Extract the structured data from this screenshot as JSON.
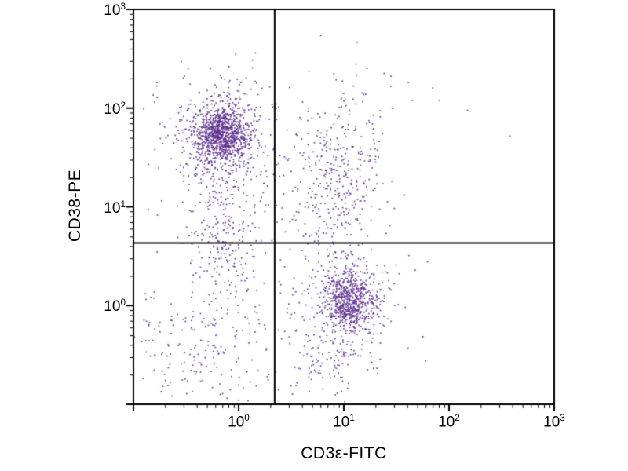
{
  "chart_data": {
    "type": "scatter",
    "subtype": "flow-cytometry-dot-plot",
    "title": "",
    "xlabel": "CD3ε-FITC",
    "ylabel": "CD38-PE",
    "xscale": "log",
    "yscale": "log",
    "xlim": [
      0.1,
      1000
    ],
    "ylim": [
      0.1,
      1000
    ],
    "x_tick_exponents": [
      0,
      1,
      2,
      3
    ],
    "y_tick_exponents": [
      0,
      1,
      2,
      3
    ],
    "grid": false,
    "legend": false,
    "quadrant_gate": {
      "x": 2.2,
      "y": 4.3
    },
    "dot_color": "#5a2b8c",
    "dot_size_px": 1.7,
    "clusters": [
      {
        "name": "CD38pos-CD3neg-dense-core",
        "cx": -0.16,
        "cy": 1.74,
        "sx": 0.13,
        "sy": 0.15,
        "n": 950
      },
      {
        "name": "CD38pos-CD3neg-halo",
        "cx": -0.14,
        "cy": 1.7,
        "sx": 0.28,
        "sy": 0.33,
        "n": 380
      },
      {
        "name": "CD3pos-CD38neg-dense-core",
        "cx": 1.05,
        "cy": 0.04,
        "sx": 0.12,
        "sy": 0.15,
        "n": 620
      },
      {
        "name": "CD3pos-CD38neg-halo",
        "cx": 1.03,
        "cy": 0.02,
        "sx": 0.25,
        "sy": 0.3,
        "n": 230
      },
      {
        "name": "CD3pos-CD38pos-intermediate",
        "cx": 0.93,
        "cy": 1.3,
        "sx": 0.22,
        "sy": 0.46,
        "n": 380
      },
      {
        "name": "CD3neg-mid-column",
        "cx": -0.1,
        "cy": 0.7,
        "sx": 0.18,
        "sy": 0.38,
        "n": 230
      },
      {
        "name": "lower-left-sparse",
        "cx": -0.3,
        "cy": -0.38,
        "sx": 0.34,
        "sy": 0.3,
        "n": 170
      },
      {
        "name": "below-tcell-sparse",
        "cx": 0.85,
        "cy": -0.55,
        "sx": 0.22,
        "sy": 0.22,
        "n": 90
      },
      {
        "name": "background-scatter",
        "uniform": true,
        "x0": -0.95,
        "x1": 1.45,
        "y0": -1.0,
        "y1": 2.35,
        "n": 130
      }
    ],
    "outliers": [
      [
        150,
        95
      ],
      [
        380,
        52
      ],
      [
        81,
        120
      ],
      [
        41,
        182
      ],
      [
        28,
        210
      ],
      [
        45,
        120
      ],
      [
        70,
        160
      ]
    ]
  }
}
